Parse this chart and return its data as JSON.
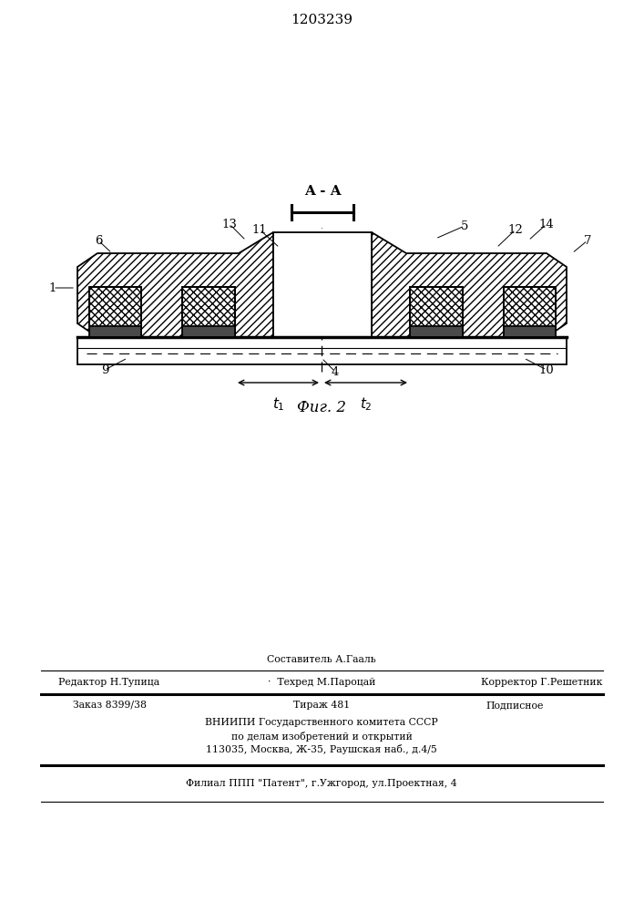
{
  "title": "1203239",
  "fig_label": "Фиг. 2",
  "section_label": "A - A",
  "bg": "#ffffff",
  "staff": {
    "l1c": "Составитель А.Гааль",
    "l2l": "Редактор Н.Тупица",
    "l2m": "·  Техред М.Пароцай",
    "l2r": "Корректор Г.Решетник",
    "ord": "Заказ 8399/38",
    "tir": "Тираж 481",
    "pod": "Подписное",
    "v1": "ВНИИПИ Государственного комитета СССР",
    "v2": "по делам изобретений и открытий",
    "v3": "113035, Москва, Ж-35, Раушская наб., д.4/5",
    "fil": "Филиал ППП \"Патент\", г.Ужгород, ул.Проектная, 4"
  }
}
